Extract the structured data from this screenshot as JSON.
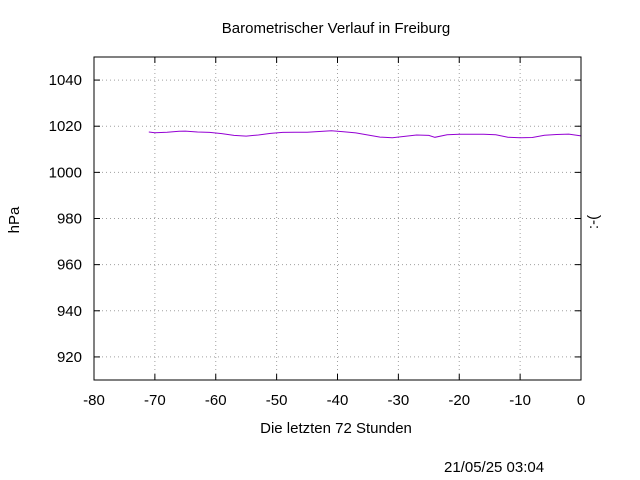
{
  "chart_data": {
    "type": "line",
    "title": "Barometrischer Verlauf in Freiburg",
    "xlabel": "Die letzten 72 Stunden",
    "ylabel": "hPa",
    "y2label": ":-(",
    "xlim": [
      -80,
      0
    ],
    "ylim": [
      910,
      1050
    ],
    "x_ticks": [
      -80,
      -70,
      -60,
      -50,
      -40,
      -30,
      -20,
      -10,
      0
    ],
    "y_ticks": [
      920,
      940,
      960,
      980,
      1000,
      1020,
      1040
    ],
    "grid": true,
    "series": [
      {
        "color": "#9400d3",
        "points": [
          [
            -71,
            1017.5
          ],
          [
            -70,
            1017.2
          ],
          [
            -68,
            1017.4
          ],
          [
            -66,
            1017.8
          ],
          [
            -65,
            1017.9
          ],
          [
            -63,
            1017.5
          ],
          [
            -61,
            1017.3
          ],
          [
            -59,
            1016.8
          ],
          [
            -57,
            1016.0
          ],
          [
            -55,
            1015.7
          ],
          [
            -53,
            1016.2
          ],
          [
            -51,
            1016.9
          ],
          [
            -49,
            1017.3
          ],
          [
            -47,
            1017.4
          ],
          [
            -45,
            1017.4
          ],
          [
            -43,
            1017.7
          ],
          [
            -41,
            1018.0
          ],
          [
            -39,
            1017.6
          ],
          [
            -37,
            1017.1
          ],
          [
            -35,
            1016.2
          ],
          [
            -33,
            1015.3
          ],
          [
            -31,
            1015.0
          ],
          [
            -29,
            1015.6
          ],
          [
            -27,
            1016.2
          ],
          [
            -25,
            1016.0
          ],
          [
            -24,
            1015.2
          ],
          [
            -22,
            1016.3
          ],
          [
            -20,
            1016.5
          ],
          [
            -18,
            1016.5
          ],
          [
            -16,
            1016.5
          ],
          [
            -14,
            1016.3
          ],
          [
            -12,
            1015.2
          ],
          [
            -10,
            1015.0
          ],
          [
            -8,
            1015.1
          ],
          [
            -6,
            1016.1
          ],
          [
            -4,
            1016.4
          ],
          [
            -2,
            1016.6
          ],
          [
            0,
            1015.8
          ]
        ]
      }
    ]
  },
  "timestamp": "21/05/25 03:04",
  "colors": {
    "series": "#9400d3",
    "grid": "#a0a0a0",
    "frame": "#000000"
  }
}
